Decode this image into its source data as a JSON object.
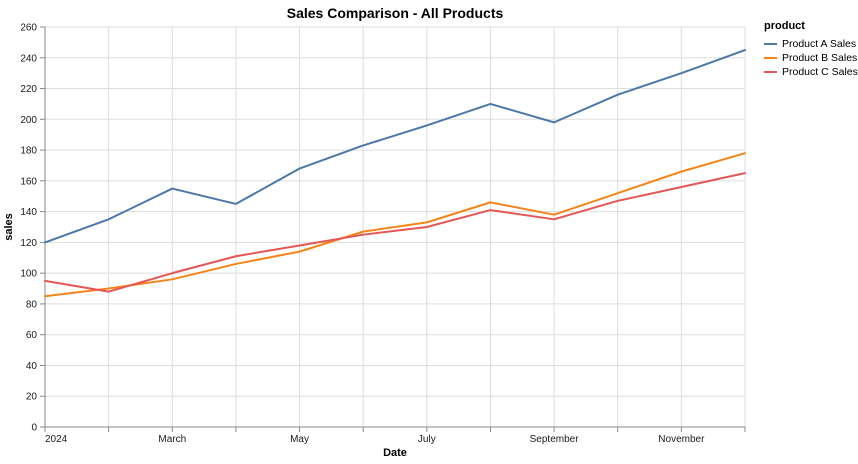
{
  "title": "Sales Comparison - All Products",
  "legend": {
    "title": "product",
    "items": [
      {
        "label": "Product A Sales",
        "color": "#4c78a8"
      },
      {
        "label": "Product B Sales",
        "color": "#f58518"
      },
      {
        "label": "Product C Sales",
        "color": "#e45756"
      }
    ]
  },
  "colors": {
    "background": "#ffffff",
    "grid": "#dddddd",
    "axis_domain": "#888888",
    "tick": "#888888",
    "label_text": "#1a1a1a",
    "title_text": "#000000"
  },
  "chart_data": {
    "type": "line",
    "title": "Sales Comparison - All Products",
    "xlabel": "Date",
    "ylabel": "sales",
    "x": [
      "2024-01",
      "2024-02",
      "2024-03",
      "2024-04",
      "2024-05",
      "2024-06",
      "2024-07",
      "2024-08",
      "2024-09",
      "2024-10",
      "2024-11",
      "2024-12"
    ],
    "x_tick_labels": [
      {
        "index": 0,
        "label": "2024"
      },
      {
        "index": 2,
        "label": "March"
      },
      {
        "index": 4,
        "label": "May"
      },
      {
        "index": 6,
        "label": "July"
      },
      {
        "index": 8,
        "label": "September"
      },
      {
        "index": 10,
        "label": "November"
      }
    ],
    "y_ticks": [
      0,
      20,
      40,
      60,
      80,
      100,
      120,
      140,
      160,
      180,
      200,
      220,
      240,
      260
    ],
    "ylim": [
      0,
      260
    ],
    "grid": true,
    "legend_position": "right",
    "series": [
      {
        "name": "Product A Sales",
        "color": "#4c78a8",
        "values": [
          120,
          135,
          155,
          145,
          168,
          183,
          196,
          210,
          198,
          216,
          230,
          245
        ]
      },
      {
        "name": "Product B Sales",
        "color": "#f58518",
        "values": [
          85,
          90,
          96,
          106,
          114,
          127,
          133,
          146,
          138,
          152,
          166,
          178
        ]
      },
      {
        "name": "Product C Sales",
        "color": "#e45756",
        "values": [
          95,
          88,
          100,
          111,
          118,
          125,
          130,
          141,
          135,
          147,
          156,
          165
        ]
      }
    ]
  }
}
